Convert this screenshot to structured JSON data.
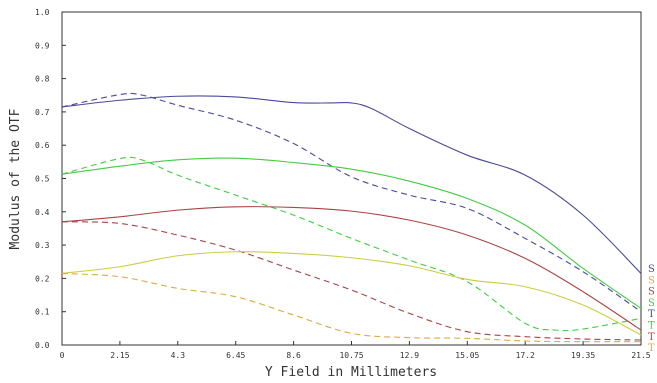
{
  "chart_data": {
    "type": "line",
    "title": "",
    "xlabel": "Y Field in Millimeters",
    "ylabel": "Modulus of the OTF",
    "xlim": [
      0,
      21.5
    ],
    "ylim": [
      0,
      1.0
    ],
    "x_ticks": [
      "0",
      "2.15",
      "4.3",
      "6.45",
      "8.6",
      "10.75",
      "12.9",
      "15.05",
      "17.2",
      "19.35",
      "21.5"
    ],
    "y_ticks": [
      "0.0",
      "0.1",
      "0.2",
      "0.3",
      "0.4",
      "0.5",
      "0.6",
      "0.7",
      "0.8",
      "0.9",
      "1.0"
    ],
    "grid": false,
    "legend_position": "right",
    "series": [
      {
        "name": "S",
        "color": "#4a4a9a",
        "dash": false,
        "x": [
          0,
          2.15,
          4.3,
          6.45,
          8.6,
          10.0,
          10.75,
          11.5,
          12.9,
          15.05,
          17.2,
          19.35,
          21.5
        ],
        "y": [
          0.715,
          0.735,
          0.747,
          0.745,
          0.728,
          0.727,
          0.727,
          0.71,
          0.65,
          0.57,
          0.51,
          0.39,
          0.215
        ]
      },
      {
        "name": "T",
        "color": "#4a4a9a",
        "dash": true,
        "x": [
          0,
          2.15,
          3.0,
          4.3,
          6.45,
          8.6,
          10.75,
          12.9,
          15.05,
          17.2,
          19.35,
          21.5
        ],
        "y": [
          0.715,
          0.752,
          0.75,
          0.72,
          0.675,
          0.605,
          0.505,
          0.45,
          0.41,
          0.32,
          0.22,
          0.1
        ]
      },
      {
        "name": "S",
        "color": "#44cc44",
        "dash": false,
        "x": [
          0,
          2.15,
          4.3,
          6.45,
          8.6,
          10.75,
          12.9,
          15.05,
          17.2,
          19.35,
          21.5
        ],
        "y": [
          0.513,
          0.537,
          0.556,
          0.561,
          0.548,
          0.528,
          0.492,
          0.44,
          0.36,
          0.23,
          0.11
        ]
      },
      {
        "name": "T",
        "color": "#44cc44",
        "dash": true,
        "x": [
          0,
          2.15,
          3.0,
          4.3,
          6.45,
          8.6,
          10.75,
          12.9,
          15.05,
          17.2,
          18.3,
          19.35,
          21.5
        ],
        "y": [
          0.513,
          0.56,
          0.555,
          0.51,
          0.45,
          0.39,
          0.32,
          0.255,
          0.19,
          0.065,
          0.045,
          0.048,
          0.08
        ]
      },
      {
        "name": "S",
        "color": "#aa4444",
        "dash": false,
        "x": [
          0,
          2.15,
          4.3,
          6.45,
          8.6,
          10.75,
          12.9,
          15.05,
          17.2,
          19.35,
          21.5
        ],
        "y": [
          0.37,
          0.385,
          0.405,
          0.415,
          0.413,
          0.402,
          0.375,
          0.33,
          0.26,
          0.16,
          0.045
        ]
      },
      {
        "name": "T",
        "color": "#aa4444",
        "dash": true,
        "x": [
          0,
          2.15,
          4.3,
          6.45,
          8.6,
          10.75,
          12.9,
          15.05,
          17.2,
          19.35,
          21.5
        ],
        "y": [
          0.37,
          0.365,
          0.33,
          0.285,
          0.225,
          0.165,
          0.095,
          0.04,
          0.025,
          0.018,
          0.015
        ]
      },
      {
        "name": "S",
        "color": "#cccc44",
        "dash": false,
        "x": [
          0,
          2.15,
          4.3,
          6.45,
          8.6,
          10.75,
          12.9,
          15.05,
          17.2,
          19.35,
          21.5
        ],
        "y": [
          0.215,
          0.235,
          0.268,
          0.28,
          0.275,
          0.262,
          0.238,
          0.197,
          0.175,
          0.12,
          0.03
        ]
      },
      {
        "name": "T",
        "color": "#ddaa44",
        "dash": true,
        "x": [
          0,
          2.15,
          4.3,
          6.45,
          8.6,
          10.75,
          12.9,
          15.05,
          17.2,
          19.35,
          21.5
        ],
        "y": [
          0.215,
          0.205,
          0.17,
          0.145,
          0.09,
          0.035,
          0.022,
          0.02,
          0.012,
          0.01,
          0.01
        ]
      }
    ],
    "legend": [
      {
        "label": "S",
        "color": "#4a4a9a"
      },
      {
        "label": "S",
        "color": "#ddaa44"
      },
      {
        "label": "S",
        "color": "#aa4444"
      },
      {
        "label": "S",
        "color": "#44cc44"
      },
      {
        "label": "T",
        "color": "#4a4a9a"
      },
      {
        "label": "T",
        "color": "#44cc44"
      },
      {
        "label": "T",
        "color": "#aa4444"
      },
      {
        "label": "T",
        "color": "#ddaa44"
      }
    ]
  }
}
